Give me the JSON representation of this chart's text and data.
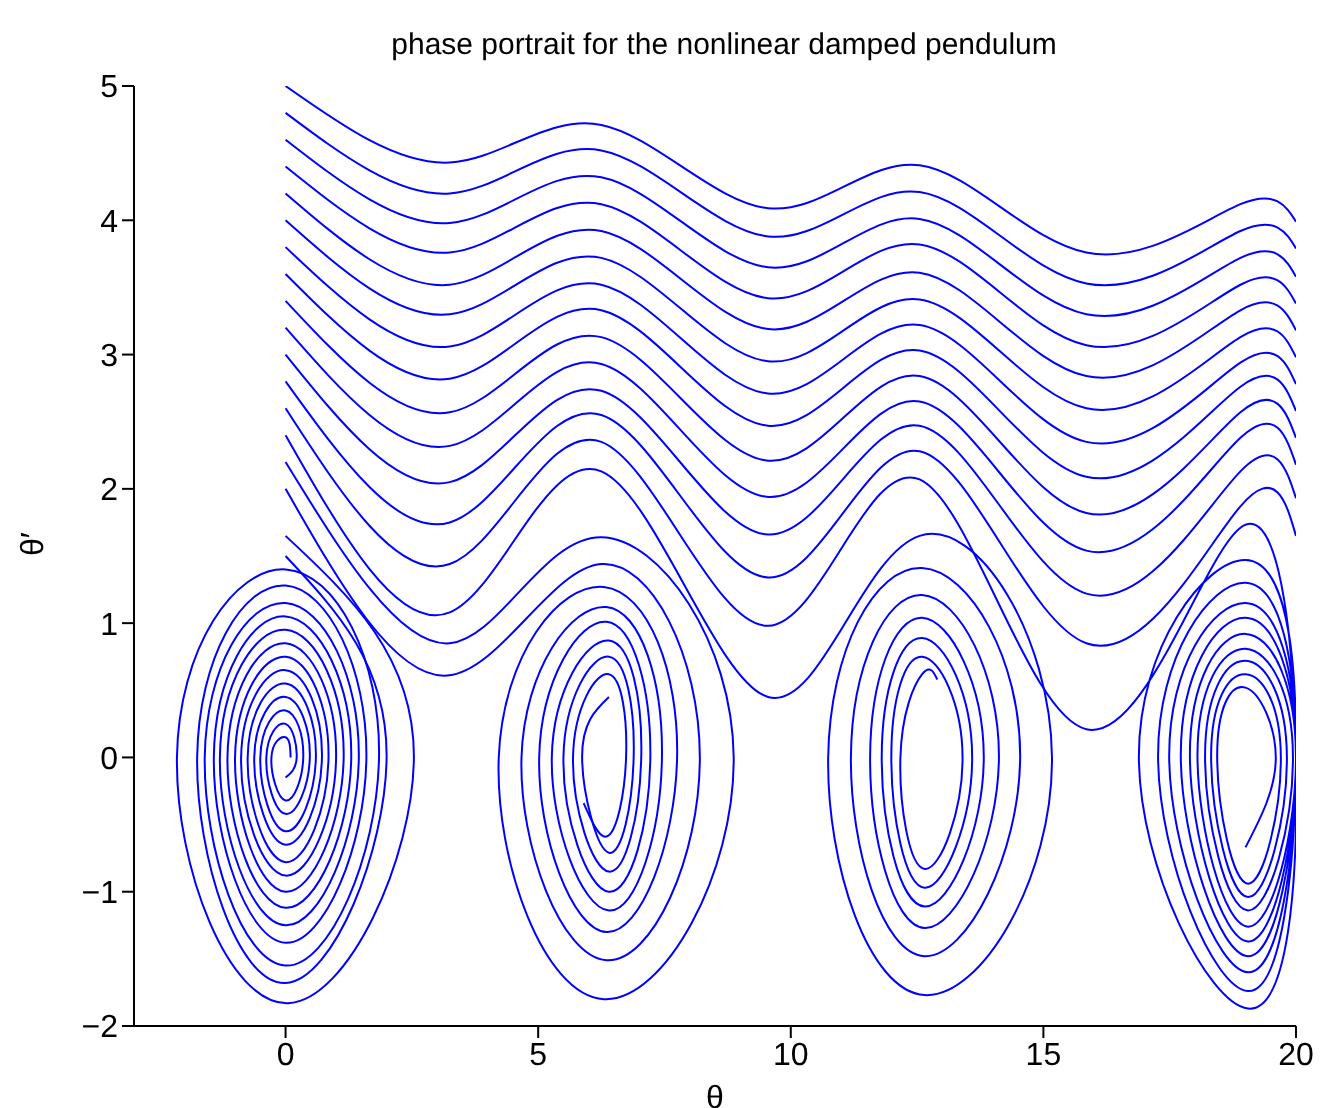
{
  "chart_data": {
    "type": "line",
    "title": "phase portrait for the nonlinear damped pendulum",
    "xlabel": "θ",
    "ylabel": "θ′",
    "xlim": [
      -3,
      20
    ],
    "xticks": [
      0,
      5,
      10,
      15,
      20
    ],
    "ylim": [
      -2,
      5
    ],
    "yticks": [
      {
        "value": -2,
        "label": "−2"
      },
      {
        "value": -1,
        "label": "−1"
      },
      0,
      1,
      2,
      3,
      4,
      5
    ],
    "line_style": "solid",
    "series": [
      {
        "color": "#0000ff",
        "x": [
          0,
          3.25,
          6.25,
          9.55,
          12.55,
          15.85,
          18.9,
          20
        ],
        "values": [
          5,
          4.43,
          4.71,
          4.09,
          4.41,
          3.76,
          4.12,
          3.99
        ]
      },
      {
        "color": "#0000ff",
        "x": [
          0,
          3.25,
          6.25,
          9.55,
          12.55,
          15.85,
          18.9,
          20
        ],
        "values": [
          4.8,
          4.2,
          4.52,
          3.88,
          4.21,
          3.53,
          3.92,
          3.79
        ]
      },
      {
        "color": "#0000ff",
        "x": [
          0,
          3.25,
          6.25,
          9.55,
          12.55,
          15.85,
          18.9,
          20
        ],
        "values": [
          4.6,
          3.98,
          4.32,
          3.65,
          4.01,
          3.3,
          3.72,
          3.58
        ]
      },
      {
        "color": "#0000ff",
        "x": [
          0,
          3.25,
          6.25,
          9.55,
          12.55,
          15.85,
          18.9,
          20
        ],
        "values": [
          4.4,
          3.76,
          4.12,
          3.42,
          3.82,
          3.07,
          3.52,
          3.38
        ]
      },
      {
        "color": "#0000ff",
        "x": [
          0,
          3.25,
          6.25,
          9.55,
          12.55,
          15.85,
          18.9,
          20
        ],
        "values": [
          4.2,
          3.52,
          3.92,
          3.19,
          3.61,
          2.84,
          3.33,
          3.18
        ]
      },
      {
        "color": "#0000ff",
        "x": [
          0,
          3.25,
          6.25,
          9.55,
          12.55,
          15.85,
          18.9,
          20
        ],
        "values": [
          4,
          3.3,
          3.72,
          2.95,
          3.41,
          2.6,
          3.13,
          2.98
        ]
      },
      {
        "color": "#0000ff",
        "x": [
          0,
          3.25,
          6.25,
          9.55,
          12.55,
          15.85,
          18.9,
          20
        ],
        "values": [
          3.8,
          3.06,
          3.52,
          2.71,
          3.22,
          2.35,
          2.94,
          2.78
        ]
      },
      {
        "color": "#0000ff",
        "x": [
          0,
          3.25,
          6.25,
          9.55,
          12.55,
          15.85,
          18.9,
          20
        ],
        "values": [
          3.6,
          2.82,
          3.33,
          2.47,
          3.03,
          2.09,
          2.76,
          2.58
        ]
      },
      {
        "color": "#0000ff",
        "x": [
          0,
          3.25,
          6.25,
          9.55,
          12.55,
          15.85,
          18.9,
          20
        ],
        "values": [
          3.4,
          2.57,
          3.13,
          2.21,
          2.84,
          1.82,
          2.57,
          2.38
        ]
      },
      {
        "color": "#0000ff",
        "x": [
          0,
          3.25,
          6.25,
          9.55,
          12.55,
          15.85,
          18.9,
          20
        ],
        "values": [
          3.2,
          2.32,
          2.93,
          1.94,
          2.65,
          1.54,
          2.38,
          2.18
        ]
      },
      {
        "color": "#0000ff",
        "x": [
          0,
          3.25,
          6.25,
          9.55,
          12.55,
          15.85,
          18.9,
          20
        ],
        "values": [
          3,
          2.05,
          2.73,
          1.66,
          2.47,
          1.22,
          2.13,
          1.93
        ]
      },
      {
        "color": "#0000ff",
        "x": [
          0,
          3.25,
          6.25,
          9.55,
          12.55,
          15.85,
          18.9,
          20
        ],
        "values": [
          2.8,
          1.75,
          2.55,
          1.34,
          2.28,
          0.85,
          1.87,
          1.65
        ]
      },
      {
        "color": "#0000ff",
        "x": [
          0,
          3.25,
          6.25,
          9.55,
          12.55,
          15.85,
          18.9,
          20,
          19.05,
          16.89,
          19,
          20,
          19.05,
          17.27,
          19,
          20,
          19.05,
          17.49,
          19,
          20,
          19.05,
          17.72,
          19,
          20,
          19.05,
          17.9,
          19,
          20,
          19.05,
          18.05,
          19,
          19.94,
          19.05,
          18.2,
          19,
          19.82,
          19.05,
          18.32,
          19,
          19.7,
          19.05,
          18.44,
          19,
          19.6,
          19
        ],
        "values": [
          2.6,
          1.44,
          2.35,
          0.98,
          2.07,
          0.21,
          1.71,
          0,
          -1.87,
          0,
          1.47,
          0,
          -1.74,
          0,
          1.3,
          0,
          -1.6,
          0,
          1.15,
          0,
          -1.48,
          0,
          1.04,
          0,
          -1.37,
          0,
          0.92,
          0,
          -1.26,
          0,
          0.81,
          0,
          -1.14,
          0,
          0.72,
          0,
          -1.04,
          0,
          0.62,
          0,
          -0.94,
          0,
          0.52,
          0,
          -0.67
        ]
      },
      {
        "color": "#0000ff",
        "x": [
          0,
          3.25,
          6.25,
          9.55,
          12.55,
          15.17,
          12.65,
          10.74,
          12.6,
          14.54,
          12.65,
          11.19,
          12.6,
          14.12,
          12.65,
          11.57,
          12.6,
          13.82,
          12.65,
          11.8,
          12.6,
          13.59,
          12.65,
          11.99,
          12.6,
          13.4,
          12.65,
          12.17,
          12.6,
          12.9
        ],
        "values": [
          2.4,
          1.08,
          2.13,
          0.45,
          1.65,
          0,
          -1.77,
          0,
          1.41,
          0,
          -1.48,
          0,
          1.21,
          0,
          -1.27,
          0,
          1.04,
          0,
          -1.11,
          0,
          0.89,
          0,
          -0.97,
          0,
          0.75,
          0,
          -0.83,
          0,
          0.62,
          0.58
        ]
      },
      {
        "color": "#0000ff",
        "x": [
          0,
          3.25,
          6.25,
          8.87,
          6.3,
          4.22,
          6.3,
          7.75,
          6.35,
          5.02,
          6.35,
          7.22,
          6.4,
          5.5,
          6.4,
          6.89,
          6.4,
          5.87,
          6.4
        ],
        "values": [
          2.2,
          0.85,
          1.64,
          0,
          -1.8,
          0,
          1.27,
          0,
          -1.3,
          0,
          1.01,
          0,
          -1,
          0,
          0.75,
          0,
          -0.71,
          0,
          0.45
        ]
      },
      {
        "color": "#0000ff",
        "x": [
          0,
          3.2,
          6.25,
          8.2,
          6.35,
          4.67,
          6.35,
          7.45,
          6.4,
          5.27,
          6.4,
          7.04,
          6.4,
          5.69,
          6.4,
          6.74,
          6.4,
          5.9
        ],
        "values": [
          2,
          0.61,
          1.44,
          0,
          -1.51,
          0,
          1.12,
          0,
          -1.14,
          0,
          0.87,
          0,
          -0.85,
          0,
          0.62,
          0,
          -0.58,
          -0.34
        ]
      },
      {
        "color": "#0000ff",
        "x": [
          0,
          2.54,
          0.05,
          -2.15,
          0,
          1.85,
          0,
          -1.6,
          0,
          1.45,
          0,
          -1.3,
          0,
          1.15,
          0,
          -1,
          0,
          0.85,
          0,
          -0.75,
          0,
          0.6,
          0,
          -0.5,
          0,
          0.35,
          0,
          -0.28,
          0,
          0.1
        ],
        "values": [
          1.65,
          0,
          -1.83,
          0,
          1.4,
          0,
          -1.55,
          0,
          1.15,
          0,
          -1.25,
          0,
          0.95,
          0,
          -1,
          0,
          0.75,
          0,
          -0.78,
          0,
          0.55,
          0,
          -0.55,
          0,
          0.35,
          0,
          -0.32,
          0,
          0.15,
          0
        ]
      },
      {
        "color": "#0000ff",
        "x": [
          0,
          2,
          0,
          -1.75,
          0,
          1.6,
          0,
          -1.42,
          0,
          1.3,
          0,
          -1.15,
          0,
          1,
          0,
          -0.88,
          0,
          0.72,
          0,
          -0.62,
          0,
          0.48,
          0,
          -0.38,
          0,
          0.22,
          0
        ],
        "values": [
          1.5,
          0,
          -1.68,
          0,
          1.28,
          0,
          -1.38,
          0,
          1.05,
          0,
          -1.12,
          0,
          0.85,
          0,
          -0.88,
          0,
          0.65,
          0,
          -0.65,
          0,
          0.45,
          0,
          -0.42,
          0,
          0.25,
          0,
          -0.15
        ]
      }
    ]
  }
}
